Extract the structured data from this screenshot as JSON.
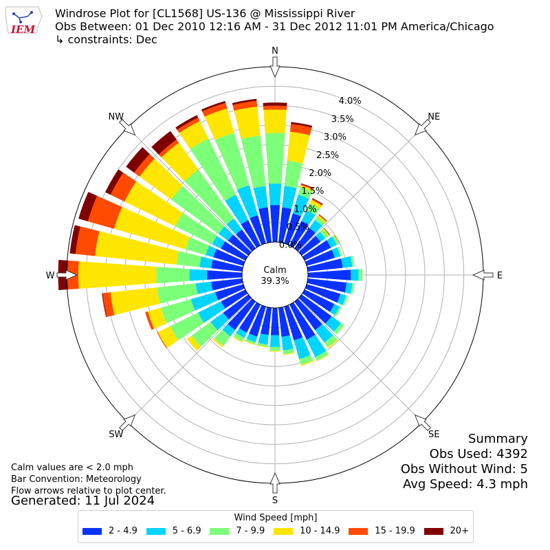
{
  "header": {
    "title": "Windrose Plot for [CL1568] US-136 @ Mississippi River",
    "obs_between": "Obs Between: 01 Dec 2010 12:16 AM - 31 Dec 2012 11:01 PM America/Chicago",
    "constraints": "↳ constraints: Dec"
  },
  "logo": {
    "text": "IEM"
  },
  "notes": {
    "calm_note": "Calm values are < 2.0 mph",
    "bar_convention": "Bar Convention: Meteorology",
    "flow_arrows": "Flow arrows relative to plot center."
  },
  "generated": "Generated: 11 Jul 2024",
  "summary": {
    "title": "Summary",
    "obs_used": "Obs Used: 4392",
    "obs_without_wind": "Obs Without Wind: 5",
    "avg_speed": "Avg Speed: 4.3 mph"
  },
  "chart_data": {
    "type": "windrose",
    "calm_label": "Calm",
    "calm_value": "39.3%",
    "calm_pct": 39.3,
    "radial_ticks": [
      "0.0%",
      "0.5%",
      "1.0%",
      "1.5%",
      "2.0%",
      "2.5%",
      "3.0%",
      "3.5%",
      "4.0%"
    ],
    "rmax": 4.5,
    "directions": [
      {
        "label": "N",
        "angle": 0
      },
      {
        "label": "NE",
        "angle": 45
      },
      {
        "label": "E",
        "angle": 90
      },
      {
        "label": "SE",
        "angle": 135
      },
      {
        "label": "S",
        "angle": 180
      },
      {
        "label": "SW",
        "angle": 225
      },
      {
        "label": "W",
        "angle": 270
      },
      {
        "label": "NW",
        "angle": 315
      }
    ],
    "legend_title": "Wind Speed [mph]",
    "bins": [
      {
        "label": "2 - 4.9",
        "color": "#0a32ff"
      },
      {
        "label": "5 - 6.9",
        "color": "#00d4ff"
      },
      {
        "label": "7 - 9.9",
        "color": "#7cff79"
      },
      {
        "label": "10 - 14.9",
        "color": "#ffe600"
      },
      {
        "label": "15 - 19.9",
        "color": "#ff4a00"
      },
      {
        "label": "20+",
        "color": "#7f0000"
      }
    ],
    "sectors": [
      {
        "dir": 0,
        "cum": [
          0.95,
          1.5,
          2.8,
          3.4,
          3.5,
          3.58
        ]
      },
      {
        "dir": 10,
        "cum": [
          0.9,
          1.45,
          2.1,
          2.85,
          3.05,
          3.1
        ]
      },
      {
        "dir": 20,
        "cum": [
          0.8,
          1.3,
          1.5,
          1.55,
          1.58,
          1.6
        ]
      },
      {
        "dir": 30,
        "cum": [
          0.7,
          1.0,
          1.2,
          1.3,
          1.33,
          1.35
        ]
      },
      {
        "dir": 40,
        "cum": [
          0.65,
          0.9,
          1.0,
          1.05,
          1.07,
          1.08
        ]
      },
      {
        "dir": 50,
        "cum": [
          0.6,
          0.75,
          0.85,
          0.88,
          0.89,
          0.9
        ]
      },
      {
        "dir": 60,
        "cum": [
          0.75,
          0.92,
          0.98,
          0.99,
          1.0,
          1.0
        ]
      },
      {
        "dir": 70,
        "cum": [
          0.75,
          0.9,
          0.94,
          0.95,
          0.95,
          0.95
        ]
      },
      {
        "dir": 80,
        "cum": [
          0.9,
          1.15,
          1.2,
          1.2,
          1.2,
          1.2
        ]
      },
      {
        "dir": 90,
        "cum": [
          1.1,
          1.3,
          1.4,
          1.4,
          1.4,
          1.4
        ]
      },
      {
        "dir": 100,
        "cum": [
          1.0,
          1.15,
          1.2,
          1.2,
          1.2,
          1.2
        ]
      },
      {
        "dir": 110,
        "cum": [
          0.9,
          1.05,
          1.1,
          1.1,
          1.1,
          1.1
        ]
      },
      {
        "dir": 120,
        "cum": [
          0.85,
          1.0,
          1.05,
          1.05,
          1.05,
          1.05
        ]
      },
      {
        "dir": 130,
        "cum": [
          0.95,
          1.25,
          1.35,
          1.35,
          1.35,
          1.35
        ]
      },
      {
        "dir": 140,
        "cum": [
          0.9,
          1.3,
          1.45,
          1.48,
          1.48,
          1.48
        ]
      },
      {
        "dir": 150,
        "cum": [
          1.0,
          1.5,
          1.6,
          1.62,
          1.62,
          1.62
        ]
      },
      {
        "dir": 160,
        "cum": [
          0.9,
          1.4,
          1.55,
          1.58,
          1.58,
          1.58
        ]
      },
      {
        "dir": 170,
        "cum": [
          0.75,
          1.1,
          1.2,
          1.22,
          1.22,
          1.22
        ]
      },
      {
        "dir": 180,
        "cum": [
          0.7,
          1.0,
          1.1,
          1.12,
          1.12,
          1.12
        ]
      },
      {
        "dir": 190,
        "cum": [
          0.7,
          0.95,
          1.0,
          1.02,
          1.02,
          1.02
        ]
      },
      {
        "dir": 200,
        "cum": [
          0.8,
          0.95,
          1.0,
          1.02,
          1.02,
          1.02
        ]
      },
      {
        "dir": 210,
        "cum": [
          0.8,
          0.95,
          1.05,
          1.08,
          1.08,
          1.08
        ]
      },
      {
        "dir": 220,
        "cum": [
          0.9,
          1.1,
          1.4,
          1.45,
          1.45,
          1.45
        ]
      },
      {
        "dir": 230,
        "cum": [
          0.8,
          1.2,
          1.8,
          1.95,
          1.95,
          1.95
        ]
      },
      {
        "dir": 240,
        "cum": [
          0.7,
          1.35,
          2.15,
          2.5,
          2.52,
          2.52
        ]
      },
      {
        "dir": 250,
        "cum": [
          0.75,
          1.4,
          2.2,
          2.55,
          2.62,
          2.62
        ]
      },
      {
        "dir": 260,
        "cum": [
          0.8,
          1.2,
          2.2,
          3.4,
          3.6,
          3.62
        ]
      },
      {
        "dir": 270,
        "cum": [
          0.9,
          1.35,
          2.2,
          4.2,
          4.48,
          4.72
        ]
      },
      {
        "dir": 280,
        "cum": [
          0.8,
          1.1,
          1.7,
          3.8,
          4.3,
          4.45
        ]
      },
      {
        "dir": 290,
        "cum": [
          0.8,
          1.0,
          1.55,
          3.45,
          4.15,
          4.4
        ]
      },
      {
        "dir": 300,
        "cum": [
          0.7,
          0.95,
          2.0,
          3.45,
          3.85,
          4.0
        ]
      },
      {
        "dir": 310,
        "cum": [
          0.65,
          0.95,
          2.45,
          3.45,
          3.62,
          3.88
        ]
      },
      {
        "dir": 320,
        "cum": [
          0.6,
          0.95,
          2.5,
          3.35,
          3.45,
          3.72
        ]
      },
      {
        "dir": 330,
        "cum": [
          0.72,
          1.45,
          3.05,
          3.55,
          3.65,
          3.72
        ]
      },
      {
        "dir": 340,
        "cum": [
          0.75,
          1.55,
          2.95,
          3.6,
          3.75,
          3.8
        ]
      },
      {
        "dir": 350,
        "cum": [
          0.9,
          1.45,
          2.75,
          3.5,
          3.65,
          3.7
        ]
      }
    ]
  }
}
